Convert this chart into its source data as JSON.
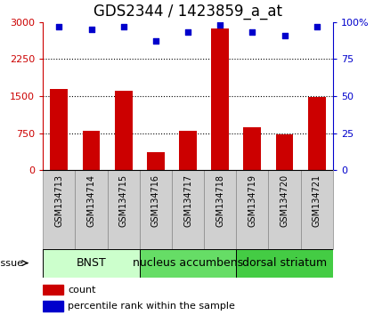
{
  "title": "GDS2344 / 1423859_a_at",
  "samples": [
    "GSM134713",
    "GSM134714",
    "GSM134715",
    "GSM134716",
    "GSM134717",
    "GSM134718",
    "GSM134719",
    "GSM134720",
    "GSM134721"
  ],
  "counts": [
    1650,
    800,
    1600,
    370,
    800,
    2870,
    870,
    720,
    1490
  ],
  "percentiles": [
    97,
    95,
    97,
    87,
    93,
    98,
    93,
    91,
    97
  ],
  "tissues": [
    {
      "label": "BNST",
      "start": 0,
      "end": 3,
      "color": "#ccffcc"
    },
    {
      "label": "nucleus accumbens",
      "start": 3,
      "end": 6,
      "color": "#66dd66"
    },
    {
      "label": "dorsal striatum",
      "start": 6,
      "end": 9,
      "color": "#44cc44"
    }
  ],
  "ylim_left": [
    0,
    3000
  ],
  "ylim_right": [
    0,
    100
  ],
  "yticks_left": [
    0,
    750,
    1500,
    2250,
    3000
  ],
  "yticks_right": [
    0,
    25,
    50,
    75,
    100
  ],
  "bar_color": "#cc0000",
  "dot_color": "#0000cc",
  "background_color": "#ffffff",
  "title_fontsize": 12,
  "tick_fontsize": 8,
  "label_fontsize": 7,
  "tissue_label_fontsize": 9,
  "legend_fontsize": 8,
  "sample_box_color": "#d0d0d0",
  "sample_box_edge": "#888888"
}
